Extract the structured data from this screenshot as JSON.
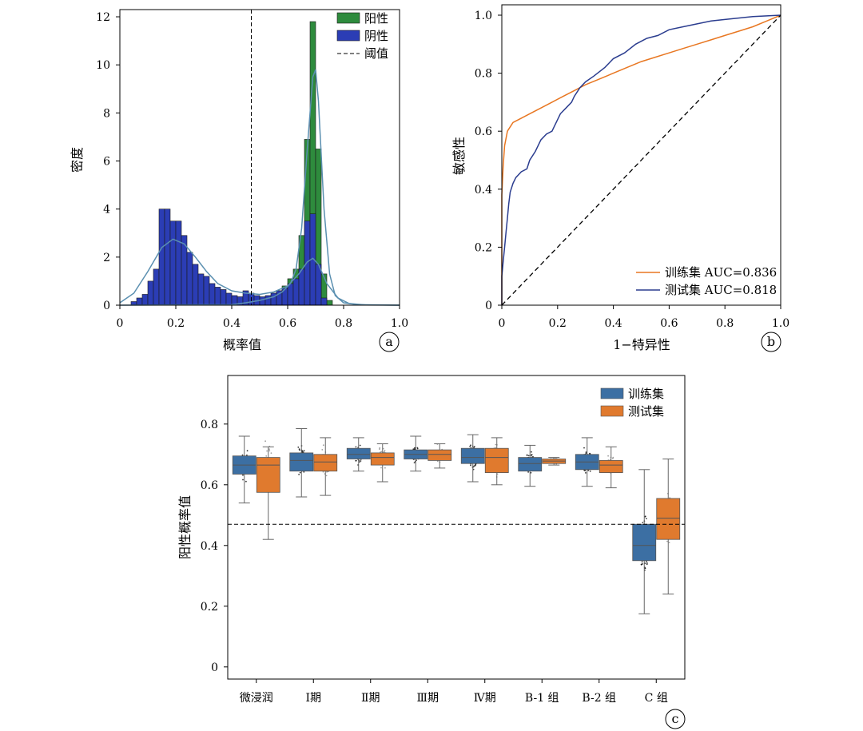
{
  "chart_data": [
    {
      "type": "bar",
      "panel_label": "a",
      "xlabel": "概率值",
      "ylabel": "密度",
      "xlim": [
        0,
        1.0
      ],
      "ylim": [
        0,
        12.3
      ],
      "xticks": [
        "0",
        "0.2",
        "0.4",
        "0.6",
        "0.8",
        "1.0"
      ],
      "yticks": [
        "0",
        "2",
        "4",
        "6",
        "8",
        "10",
        "12"
      ],
      "threshold": 0.47,
      "legend_position": "top-right",
      "legend": [
        {
          "label": "阳性",
          "kind": "bar",
          "color": "#2e8b3d"
        },
        {
          "label": "阴性",
          "kind": "bar",
          "color": "#2b3db5"
        },
        {
          "label": "阈值",
          "kind": "dashed-line",
          "color": "#000000"
        }
      ],
      "positive_bars": [
        {
          "x0": 0.44,
          "x1": 0.46,
          "v": 0.1
        },
        {
          "x0": 0.46,
          "x1": 0.48,
          "v": 0.15
        },
        {
          "x0": 0.48,
          "x1": 0.5,
          "v": 0.2
        },
        {
          "x0": 0.5,
          "x1": 0.52,
          "v": 0.25
        },
        {
          "x0": 0.52,
          "x1": 0.54,
          "v": 0.3
        },
        {
          "x0": 0.54,
          "x1": 0.56,
          "v": 0.4
        },
        {
          "x0": 0.56,
          "x1": 0.58,
          "v": 0.6
        },
        {
          "x0": 0.58,
          "x1": 0.6,
          "v": 0.8
        },
        {
          "x0": 0.6,
          "x1": 0.62,
          "v": 1.1
        },
        {
          "x0": 0.62,
          "x1": 0.64,
          "v": 1.5
        },
        {
          "x0": 0.64,
          "x1": 0.66,
          "v": 2.9
        },
        {
          "x0": 0.66,
          "x1": 0.68,
          "v": 6.9
        },
        {
          "x0": 0.68,
          "x1": 0.7,
          "v": 11.8
        },
        {
          "x0": 0.7,
          "x1": 0.72,
          "v": 6.5
        },
        {
          "x0": 0.72,
          "x1": 0.74,
          "v": 1.3
        },
        {
          "x0": 0.74,
          "x1": 0.76,
          "v": 0.2
        }
      ],
      "negative_bars": [
        {
          "x0": 0.04,
          "x1": 0.06,
          "v": 0.15
        },
        {
          "x0": 0.06,
          "x1": 0.08,
          "v": 0.3
        },
        {
          "x0": 0.08,
          "x1": 0.1,
          "v": 0.45
        },
        {
          "x0": 0.1,
          "x1": 0.12,
          "v": 1.0
        },
        {
          "x0": 0.12,
          "x1": 0.14,
          "v": 1.5
        },
        {
          "x0": 0.14,
          "x1": 0.16,
          "v": 4.0
        },
        {
          "x0": 0.16,
          "x1": 0.18,
          "v": 4.0
        },
        {
          "x0": 0.18,
          "x1": 0.2,
          "v": 3.5
        },
        {
          "x0": 0.2,
          "x1": 0.22,
          "v": 3.5
        },
        {
          "x0": 0.22,
          "x1": 0.24,
          "v": 2.9
        },
        {
          "x0": 0.24,
          "x1": 0.26,
          "v": 2.2
        },
        {
          "x0": 0.26,
          "x1": 0.28,
          "v": 1.7
        },
        {
          "x0": 0.28,
          "x1": 0.3,
          "v": 1.3
        },
        {
          "x0": 0.3,
          "x1": 0.32,
          "v": 1.2
        },
        {
          "x0": 0.32,
          "x1": 0.34,
          "v": 0.9
        },
        {
          "x0": 0.34,
          "x1": 0.36,
          "v": 0.75
        },
        {
          "x0": 0.36,
          "x1": 0.38,
          "v": 0.65
        },
        {
          "x0": 0.38,
          "x1": 0.4,
          "v": 0.5
        },
        {
          "x0": 0.4,
          "x1": 0.42,
          "v": 0.4
        },
        {
          "x0": 0.42,
          "x1": 0.44,
          "v": 0.35
        },
        {
          "x0": 0.44,
          "x1": 0.46,
          "v": 0.6
        },
        {
          "x0": 0.46,
          "x1": 0.48,
          "v": 0.5
        },
        {
          "x0": 0.48,
          "x1": 0.5,
          "v": 0.4
        },
        {
          "x0": 0.5,
          "x1": 0.52,
          "v": 0.35
        },
        {
          "x0": 0.52,
          "x1": 0.54,
          "v": 0.4
        },
        {
          "x0": 0.54,
          "x1": 0.56,
          "v": 0.5
        },
        {
          "x0": 0.56,
          "x1": 0.58,
          "v": 0.6
        },
        {
          "x0": 0.58,
          "x1": 0.6,
          "v": 0.7
        },
        {
          "x0": 0.6,
          "x1": 0.62,
          "v": 0.9
        },
        {
          "x0": 0.62,
          "x1": 0.64,
          "v": 1.1
        },
        {
          "x0": 0.64,
          "x1": 0.66,
          "v": 1.5
        },
        {
          "x0": 0.66,
          "x1": 0.68,
          "v": 3.5
        },
        {
          "x0": 0.68,
          "x1": 0.7,
          "v": 3.8
        },
        {
          "x0": 0.7,
          "x1": 0.72,
          "v": 1.7
        },
        {
          "x0": 0.72,
          "x1": 0.74,
          "v": 0.3
        }
      ],
      "kde_positive": [
        [
          0,
          0
        ],
        [
          0.4,
          0.02
        ],
        [
          0.45,
          0.1
        ],
        [
          0.5,
          0.2
        ],
        [
          0.55,
          0.35
        ],
        [
          0.58,
          0.55
        ],
        [
          0.61,
          0.9
        ],
        [
          0.63,
          1.5
        ],
        [
          0.65,
          3.2
        ],
        [
          0.67,
          6.5
        ],
        [
          0.69,
          9.5
        ],
        [
          0.7,
          9.8
        ],
        [
          0.71,
          8.5
        ],
        [
          0.73,
          4.0
        ],
        [
          0.75,
          1.3
        ],
        [
          0.77,
          0.4
        ],
        [
          0.8,
          0.1
        ],
        [
          0.85,
          0.02
        ],
        [
          1.0,
          0
        ]
      ],
      "kde_negative": [
        [
          0,
          0.1
        ],
        [
          0.05,
          0.5
        ],
        [
          0.1,
          1.4
        ],
        [
          0.15,
          2.4
        ],
        [
          0.19,
          2.75
        ],
        [
          0.23,
          2.55
        ],
        [
          0.27,
          2.0
        ],
        [
          0.31,
          1.4
        ],
        [
          0.35,
          0.9
        ],
        [
          0.4,
          0.6
        ],
        [
          0.45,
          0.5
        ],
        [
          0.5,
          0.45
        ],
        [
          0.55,
          0.55
        ],
        [
          0.6,
          0.8
        ],
        [
          0.64,
          1.3
        ],
        [
          0.67,
          1.8
        ],
        [
          0.69,
          1.95
        ],
        [
          0.71,
          1.7
        ],
        [
          0.74,
          0.9
        ],
        [
          0.78,
          0.3
        ],
        [
          0.82,
          0.07
        ],
        [
          0.88,
          0.01
        ],
        [
          1.0,
          0
        ]
      ]
    },
    {
      "type": "line",
      "panel_label": "b",
      "xlabel": "1−特异性",
      "ylabel": "敏感性",
      "xlim": [
        0,
        1.0
      ],
      "ylim": [
        0,
        1.0
      ],
      "xticks": [
        "0",
        "0.2",
        "0.4",
        "0.6",
        "0.8",
        "1.0"
      ],
      "yticks": [
        "0",
        "0.2",
        "0.4",
        "0.6",
        "0.8",
        "1.0"
      ],
      "legend_position": "bottom-right",
      "series": [
        {
          "name": "训练集 AUC=0.836",
          "color": "#e87722",
          "points": [
            [
              0,
              0
            ],
            [
              0,
              0.38
            ],
            [
              0.005,
              0.48
            ],
            [
              0.01,
              0.55
            ],
            [
              0.02,
              0.6
            ],
            [
              0.04,
              0.63
            ],
            [
              0.07,
              0.645
            ],
            [
              0.1,
              0.66
            ],
            [
              0.14,
              0.68
            ],
            [
              0.18,
              0.7
            ],
            [
              0.22,
              0.72
            ],
            [
              0.26,
              0.74
            ],
            [
              0.3,
              0.76
            ],
            [
              0.35,
              0.78
            ],
            [
              0.4,
              0.8
            ],
            [
              0.45,
              0.82
            ],
            [
              0.5,
              0.84
            ],
            [
              0.55,
              0.855
            ],
            [
              0.6,
              0.87
            ],
            [
              0.65,
              0.885
            ],
            [
              0.7,
              0.9
            ],
            [
              0.75,
              0.915
            ],
            [
              0.8,
              0.93
            ],
            [
              0.85,
              0.945
            ],
            [
              0.9,
              0.96
            ],
            [
              0.95,
              0.98
            ],
            [
              1.0,
              1.0
            ]
          ]
        },
        {
          "name": "测试集 AUC=0.818",
          "color": "#2b3d8f",
          "points": [
            [
              0,
              0
            ],
            [
              0,
              0.1
            ],
            [
              0.005,
              0.15
            ],
            [
              0.01,
              0.2
            ],
            [
              0.015,
              0.25
            ],
            [
              0.02,
              0.3
            ],
            [
              0.025,
              0.35
            ],
            [
              0.03,
              0.39
            ],
            [
              0.04,
              0.42
            ],
            [
              0.05,
              0.44
            ],
            [
              0.07,
              0.46
            ],
            [
              0.09,
              0.47
            ],
            [
              0.1,
              0.5
            ],
            [
              0.12,
              0.53
            ],
            [
              0.14,
              0.57
            ],
            [
              0.16,
              0.59
            ],
            [
              0.18,
              0.6
            ],
            [
              0.19,
              0.62
            ],
            [
              0.2,
              0.64
            ],
            [
              0.21,
              0.66
            ],
            [
              0.23,
              0.68
            ],
            [
              0.25,
              0.7
            ],
            [
              0.26,
              0.72
            ],
            [
              0.28,
              0.75
            ],
            [
              0.3,
              0.77
            ],
            [
              0.33,
              0.79
            ],
            [
              0.37,
              0.82
            ],
            [
              0.4,
              0.85
            ],
            [
              0.44,
              0.87
            ],
            [
              0.48,
              0.9
            ],
            [
              0.52,
              0.92
            ],
            [
              0.56,
              0.93
            ],
            [
              0.6,
              0.95
            ],
            [
              0.65,
              0.96
            ],
            [
              0.7,
              0.97
            ],
            [
              0.75,
              0.98
            ],
            [
              0.8,
              0.985
            ],
            [
              0.9,
              0.995
            ],
            [
              1.0,
              1.0
            ]
          ]
        },
        {
          "name": "",
          "color": "#000000",
          "dashed": true,
          "points": [
            [
              0,
              0
            ],
            [
              1,
              1
            ]
          ]
        }
      ]
    },
    {
      "type": "box",
      "panel_label": "c",
      "ylabel": "阳性概率值",
      "ylim": [
        -0.04,
        0.96
      ],
      "yticks": [
        "0",
        "0.2",
        "0.4",
        "0.6",
        "0.8"
      ],
      "threshold": 0.47,
      "legend_position": "top-right",
      "categories": [
        "微浸润",
        "Ⅰ期",
        "Ⅱ期",
        "Ⅲ期",
        "Ⅳ期",
        "B-1 组",
        "B-2 组",
        "C 组"
      ],
      "series": [
        {
          "name": "训练集",
          "color": "#3c6fa3",
          "boxes": [
            {
              "q1": 0.635,
              "median": 0.665,
              "q3": 0.695,
              "wlo": 0.54,
              "whi": 0.76
            },
            {
              "q1": 0.645,
              "median": 0.68,
              "q3": 0.705,
              "wlo": 0.56,
              "whi": 0.785
            },
            {
              "q1": 0.685,
              "median": 0.7,
              "q3": 0.72,
              "wlo": 0.645,
              "whi": 0.755
            },
            {
              "q1": 0.685,
              "median": 0.7,
              "q3": 0.715,
              "wlo": 0.645,
              "whi": 0.76
            },
            {
              "q1": 0.67,
              "median": 0.69,
              "q3": 0.72,
              "wlo": 0.61,
              "whi": 0.765
            },
            {
              "q1": 0.645,
              "median": 0.67,
              "q3": 0.69,
              "wlo": 0.595,
              "whi": 0.73
            },
            {
              "q1": 0.65,
              "median": 0.675,
              "q3": 0.7,
              "wlo": 0.595,
              "whi": 0.755
            },
            {
              "q1": 0.35,
              "median": 0.4,
              "q3": 0.47,
              "wlo": 0.175,
              "whi": 0.65
            }
          ]
        },
        {
          "name": "测试集",
          "color": "#e07a2e",
          "boxes": [
            {
              "q1": 0.575,
              "median": 0.665,
              "q3": 0.69,
              "wlo": 0.42,
              "whi": 0.725
            },
            {
              "q1": 0.645,
              "median": 0.675,
              "q3": 0.7,
              "wlo": 0.565,
              "whi": 0.755
            },
            {
              "q1": 0.665,
              "median": 0.69,
              "q3": 0.705,
              "wlo": 0.61,
              "whi": 0.735
            },
            {
              "q1": 0.68,
              "median": 0.7,
              "q3": 0.715,
              "wlo": 0.655,
              "whi": 0.735
            },
            {
              "q1": 0.64,
              "median": 0.69,
              "q3": 0.72,
              "wlo": 0.6,
              "whi": 0.755
            },
            {
              "q1": 0.67,
              "median": 0.678,
              "q3": 0.685,
              "wlo": 0.665,
              "whi": 0.69
            },
            {
              "q1": 0.64,
              "median": 0.665,
              "q3": 0.68,
              "wlo": 0.59,
              "whi": 0.725
            },
            {
              "q1": 0.42,
              "median": 0.49,
              "q3": 0.555,
              "wlo": 0.24,
              "whi": 0.685
            }
          ]
        }
      ]
    }
  ]
}
